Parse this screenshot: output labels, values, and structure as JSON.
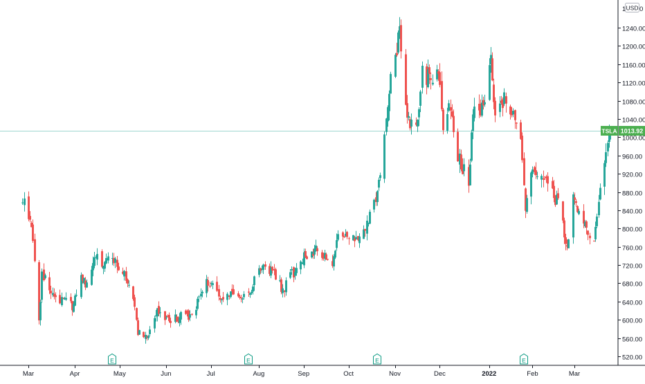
{
  "chart_data": {
    "type": "candlestick",
    "symbol": "TSLA",
    "currency": "USD",
    "last_price": 1013.92,
    "last_price_label": "1013.92",
    "ylim": [
      500,
      1280
    ],
    "y_ticks": [
      520,
      560,
      600,
      640,
      680,
      720,
      760,
      800,
      840,
      880,
      920,
      960,
      1000,
      1040,
      1080,
      1120,
      1160,
      1200,
      1240
    ],
    "y_tick_labels": [
      "520.00",
      "560.00",
      "600.00",
      "640.00",
      "680.00",
      "720.00",
      "760.00",
      "800.00",
      "840.00",
      "880.00",
      "920.00",
      "960.00",
      "1000.00",
      "1040.00",
      "1080.00",
      "1120.00",
      "1160.00",
      "1200.00",
      "1240.00"
    ],
    "top_partial_label": "1",
    "x_range": [
      "2021-03-01",
      "2022-03-31"
    ],
    "month_labels": [
      {
        "label": "Mar",
        "date": "2021-03-01",
        "bold": false
      },
      {
        "label": "Apr",
        "date": "2021-04-01",
        "bold": false
      },
      {
        "label": "May",
        "date": "2021-05-01",
        "bold": false
      },
      {
        "label": "Jun",
        "date": "2021-06-01",
        "bold": false
      },
      {
        "label": "Jul",
        "date": "2021-07-01",
        "bold": false
      },
      {
        "label": "Aug",
        "date": "2021-08-02",
        "bold": false
      },
      {
        "label": "Sep",
        "date": "2021-09-01",
        "bold": false
      },
      {
        "label": "Oct",
        "date": "2021-10-01",
        "bold": false
      },
      {
        "label": "Nov",
        "date": "2021-11-01",
        "bold": false
      },
      {
        "label": "Dec",
        "date": "2021-12-01",
        "bold": false
      },
      {
        "label": "2022",
        "date": "2022-01-03",
        "bold": true
      },
      {
        "label": "Feb",
        "date": "2022-02-01",
        "bold": false
      },
      {
        "label": "Mar",
        "date": "2022-03-01",
        "bold": false
      }
    ],
    "earnings_markers": [
      {
        "label": "E",
        "date": "2021-04-26"
      },
      {
        "label": "E",
        "date": "2021-07-26"
      },
      {
        "label": "E",
        "date": "2021-10-20"
      },
      {
        "label": "E",
        "date": "2022-01-26"
      }
    ],
    "anchors": [
      [
        "2021-02-25",
        860
      ],
      [
        "2021-03-03",
        815
      ],
      [
        "2021-03-08",
        600
      ],
      [
        "2021-03-10",
        700
      ],
      [
        "2021-03-12",
        690
      ],
      [
        "2021-03-18",
        655
      ],
      [
        "2021-03-24",
        640
      ],
      [
        "2021-03-30",
        630
      ],
      [
        "2021-04-05",
        690
      ],
      [
        "2021-04-09",
        680
      ],
      [
        "2021-04-14",
        750
      ],
      [
        "2021-04-19",
        715
      ],
      [
        "2021-04-26",
        740
      ],
      [
        "2021-05-03",
        705
      ],
      [
        "2021-05-10",
        640
      ],
      [
        "2021-05-13",
        575
      ],
      [
        "2021-05-19",
        560
      ],
      [
        "2021-05-25",
        610
      ],
      [
        "2021-05-28",
        625
      ],
      [
        "2021-06-03",
        595
      ],
      [
        "2021-06-09",
        605
      ],
      [
        "2021-06-16",
        610
      ],
      [
        "2021-06-23",
        640
      ],
      [
        "2021-06-28",
        685
      ],
      [
        "2021-07-02",
        680
      ],
      [
        "2021-07-08",
        650
      ],
      [
        "2021-07-13",
        660
      ],
      [
        "2021-07-19",
        645
      ],
      [
        "2021-07-26",
        650
      ],
      [
        "2021-07-30",
        690
      ],
      [
        "2021-08-05",
        715
      ],
      [
        "2021-08-11",
        710
      ],
      [
        "2021-08-18",
        665
      ],
      [
        "2021-08-20",
        675
      ],
      [
        "2021-08-25",
        705
      ],
      [
        "2021-09-01",
        735
      ],
      [
        "2021-09-08",
        752
      ],
      [
        "2021-09-13",
        745
      ],
      [
        "2021-09-20",
        730
      ],
      [
        "2021-09-24",
        775
      ],
      [
        "2021-09-30",
        780
      ],
      [
        "2021-10-06",
        783
      ],
      [
        "2021-10-13",
        805
      ],
      [
        "2021-10-19",
        865
      ],
      [
        "2021-10-22",
        910
      ],
      [
        "2021-10-25",
        1020
      ],
      [
        "2021-10-29",
        1120
      ],
      [
        "2021-11-02",
        1200
      ],
      [
        "2021-11-04",
        1230
      ],
      [
        "2021-11-09",
        1030
      ],
      [
        "2021-11-12",
        1030
      ],
      [
        "2021-11-16",
        1050
      ],
      [
        "2021-11-19",
        1140
      ],
      [
        "2021-11-24",
        1130
      ],
      [
        "2021-11-30",
        1150
      ],
      [
        "2021-12-03",
        1030
      ],
      [
        "2021-12-08",
        1070
      ],
      [
        "2021-12-13",
        960
      ],
      [
        "2021-12-20",
        900
      ],
      [
        "2021-12-23",
        1060
      ],
      [
        "2021-12-31",
        1060
      ],
      [
        "2022-01-04",
        1190
      ],
      [
        "2022-01-07",
        1040
      ],
      [
        "2022-01-10",
        1060
      ],
      [
        "2022-01-13",
        1080
      ],
      [
        "2022-01-18",
        1050
      ],
      [
        "2022-01-24",
        990
      ],
      [
        "2022-01-27",
        830
      ],
      [
        "2022-01-31",
        930
      ],
      [
        "2022-02-04",
        900
      ],
      [
        "2022-02-08",
        920
      ],
      [
        "2022-02-14",
        875
      ],
      [
        "2022-02-18",
        855
      ],
      [
        "2022-02-24",
        760
      ],
      [
        "2022-02-28",
        870
      ],
      [
        "2022-03-03",
        850
      ],
      [
        "2022-03-08",
        810
      ],
      [
        "2022-03-11",
        790
      ],
      [
        "2022-03-14",
        770
      ],
      [
        "2022-03-17",
        870
      ],
      [
        "2022-03-23",
        995
      ],
      [
        "2022-03-25",
        1013.92
      ]
    ],
    "grid": false,
    "colors": {
      "up": "#26a69a",
      "down": "#ef5350",
      "price_tag": "#4caf50",
      "price_line": "#9fd6d0",
      "axis_text": "#131722",
      "axis_line": "#131722",
      "earnings": "#089981"
    }
  }
}
